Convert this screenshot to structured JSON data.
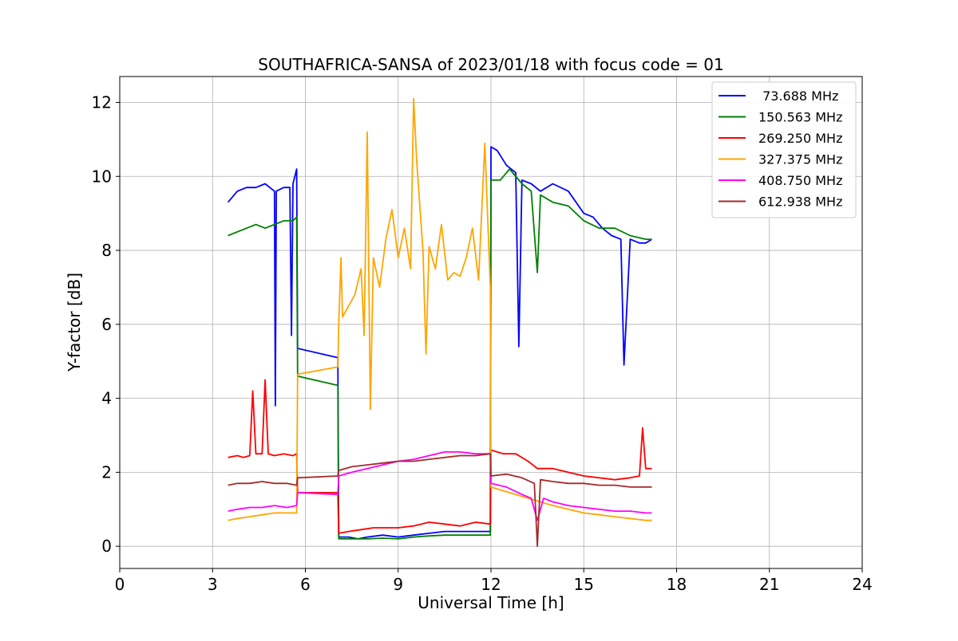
{
  "chart_data": {
    "type": "line",
    "title": "SOUTHAFRICA-SANSA of 2023/01/18 with focus code = 01",
    "xlabel": "Universal Time [h]",
    "ylabel": "Y-factor [dB]",
    "xlim": [
      0,
      24
    ],
    "ylim": [
      -0.6,
      12.7
    ],
    "xticks": [
      0,
      3,
      6,
      9,
      12,
      15,
      18,
      21,
      24
    ],
    "yticks": [
      0,
      2,
      4,
      6,
      8,
      10,
      12
    ],
    "grid": true,
    "legend_position": "top-right",
    "series": [
      {
        "name": " 73.688 MHz",
        "color": "#0000ff",
        "x": [
          3.5,
          3.8,
          4.1,
          4.4,
          4.7,
          5.0,
          5.03,
          5.06,
          5.3,
          5.5,
          5.55,
          5.6,
          5.72,
          5.75,
          7.05,
          7.08,
          7.4,
          7.7,
          8.0,
          8.5,
          9.0,
          9.5,
          10.0,
          10.5,
          11.0,
          11.5,
          11.98,
          12.0,
          12.2,
          12.5,
          12.8,
          12.9,
          13.0,
          13.3,
          13.6,
          14.0,
          14.5,
          15.0,
          15.3,
          15.6,
          15.9,
          16.2,
          16.3,
          16.5,
          16.8,
          17.0,
          17.2
        ],
        "y": [
          9.3,
          9.6,
          9.7,
          9.7,
          9.8,
          9.6,
          3.8,
          9.6,
          9.7,
          9.7,
          5.7,
          9.8,
          10.2,
          5.35,
          5.1,
          0.25,
          0.25,
          0.2,
          0.25,
          0.3,
          0.25,
          0.3,
          0.35,
          0.4,
          0.4,
          0.4,
          0.4,
          10.8,
          10.7,
          10.3,
          10.1,
          5.4,
          9.9,
          9.8,
          9.6,
          9.8,
          9.6,
          9.0,
          8.9,
          8.6,
          8.4,
          8.3,
          4.9,
          8.3,
          8.2,
          8.2,
          8.3
        ]
      },
      {
        "name": "150.563 MHz",
        "color": "#008000",
        "x": [
          3.5,
          3.8,
          4.1,
          4.4,
          4.7,
          5.0,
          5.3,
          5.6,
          5.72,
          5.75,
          7.05,
          7.08,
          7.4,
          8.0,
          8.5,
          9.0,
          9.5,
          10.0,
          10.5,
          11.0,
          11.5,
          11.98,
          12.0,
          12.3,
          12.6,
          13.0,
          13.3,
          13.5,
          13.6,
          14.0,
          14.5,
          15.0,
          15.5,
          16.0,
          16.5,
          17.0,
          17.2
        ],
        "y": [
          8.4,
          8.5,
          8.6,
          8.7,
          8.6,
          8.7,
          8.8,
          8.8,
          8.9,
          4.6,
          4.35,
          0.2,
          0.2,
          0.2,
          0.22,
          0.2,
          0.25,
          0.28,
          0.3,
          0.3,
          0.3,
          0.3,
          9.9,
          9.9,
          10.2,
          9.8,
          9.6,
          7.4,
          9.5,
          9.3,
          9.2,
          8.8,
          8.6,
          8.6,
          8.4,
          8.3,
          8.3
        ]
      },
      {
        "name": "269.250 MHz",
        "color": "#ff0000",
        "x": [
          3.5,
          3.8,
          4.0,
          4.2,
          4.3,
          4.4,
          4.6,
          4.7,
          4.8,
          5.0,
          5.3,
          5.6,
          5.72,
          5.75,
          7.05,
          7.08,
          7.4,
          7.8,
          8.2,
          8.6,
          9.0,
          9.5,
          10.0,
          10.5,
          11.0,
          11.5,
          11.98,
          12.0,
          12.4,
          12.8,
          13.2,
          13.5,
          14.0,
          14.5,
          15.0,
          15.5,
          16.0,
          16.5,
          16.8,
          16.9,
          17.0,
          17.2
        ],
        "y": [
          2.4,
          2.45,
          2.4,
          2.45,
          4.2,
          2.5,
          2.5,
          4.5,
          2.5,
          2.45,
          2.5,
          2.45,
          2.5,
          1.45,
          1.45,
          0.35,
          0.4,
          0.45,
          0.5,
          0.5,
          0.5,
          0.55,
          0.65,
          0.6,
          0.55,
          0.65,
          0.6,
          2.6,
          2.5,
          2.5,
          2.3,
          2.1,
          2.1,
          2.0,
          1.9,
          1.85,
          1.8,
          1.85,
          1.9,
          3.2,
          2.1,
          2.1
        ]
      },
      {
        "name": "327.375 MHz",
        "color": "#ffa500",
        "x": [
          3.5,
          3.8,
          4.2,
          4.6,
          5.0,
          5.4,
          5.72,
          5.75,
          7.05,
          7.08,
          7.15,
          7.2,
          7.4,
          7.6,
          7.8,
          7.9,
          8.0,
          8.1,
          8.2,
          8.4,
          8.6,
          8.8,
          9.0,
          9.2,
          9.4,
          9.5,
          9.6,
          9.8,
          9.9,
          10.0,
          10.2,
          10.4,
          10.6,
          10.8,
          11.0,
          11.2,
          11.4,
          11.6,
          11.8,
          11.98,
          12.0,
          12.4,
          12.8,
          13.2,
          13.6,
          14.0,
          14.5,
          15.0,
          15.5,
          16.0,
          16.5,
          17.0,
          17.2
        ],
        "y": [
          0.7,
          0.75,
          0.8,
          0.85,
          0.9,
          0.9,
          0.9,
          4.65,
          4.85,
          6.0,
          7.8,
          6.2,
          6.5,
          6.8,
          7.5,
          5.7,
          11.2,
          3.7,
          7.8,
          7.0,
          8.3,
          9.1,
          7.8,
          8.6,
          7.5,
          12.1,
          10.4,
          8.0,
          5.2,
          8.1,
          7.5,
          8.7,
          7.2,
          7.4,
          7.3,
          7.8,
          8.6,
          7.2,
          10.9,
          7.0,
          1.6,
          1.5,
          1.4,
          1.3,
          1.2,
          1.1,
          1.0,
          0.9,
          0.85,
          0.8,
          0.75,
          0.7,
          0.7
        ]
      },
      {
        "name": "408.750 MHz",
        "color": "#ff00ff",
        "x": [
          3.5,
          3.8,
          4.2,
          4.6,
          5.0,
          5.4,
          5.72,
          5.75,
          7.05,
          7.08,
          7.5,
          8.0,
          8.5,
          9.0,
          9.5,
          10.0,
          10.5,
          11.0,
          11.5,
          11.98,
          12.0,
          12.5,
          13.0,
          13.3,
          13.5,
          13.7,
          14.0,
          14.5,
          15.0,
          15.5,
          16.0,
          16.5,
          17.0,
          17.2
        ],
        "y": [
          0.95,
          1.0,
          1.05,
          1.05,
          1.1,
          1.05,
          1.1,
          1.45,
          1.4,
          1.9,
          2.0,
          2.1,
          2.2,
          2.3,
          2.35,
          2.45,
          2.55,
          2.55,
          2.5,
          2.5,
          1.7,
          1.6,
          1.4,
          1.3,
          0.7,
          1.3,
          1.2,
          1.1,
          1.05,
          1.0,
          0.95,
          0.95,
          0.9,
          0.9
        ]
      },
      {
        "name": "612.938 MHz",
        "color": "#a52a2a",
        "x": [
          3.5,
          3.8,
          4.2,
          4.6,
          5.0,
          5.4,
          5.72,
          5.75,
          7.05,
          7.08,
          7.5,
          8.0,
          8.5,
          9.0,
          9.5,
          10.0,
          10.5,
          11.0,
          11.5,
          11.98,
          12.0,
          12.5,
          13.0,
          13.4,
          13.5,
          13.6,
          14.0,
          14.5,
          15.0,
          15.5,
          16.0,
          16.5,
          17.0,
          17.2
        ],
        "y": [
          1.65,
          1.7,
          1.7,
          1.75,
          1.7,
          1.7,
          1.65,
          1.85,
          1.9,
          2.05,
          2.15,
          2.2,
          2.25,
          2.3,
          2.3,
          2.35,
          2.4,
          2.45,
          2.45,
          2.5,
          1.9,
          1.95,
          1.85,
          1.7,
          0.0,
          1.8,
          1.75,
          1.7,
          1.7,
          1.65,
          1.65,
          1.6,
          1.6,
          1.6
        ]
      }
    ]
  }
}
